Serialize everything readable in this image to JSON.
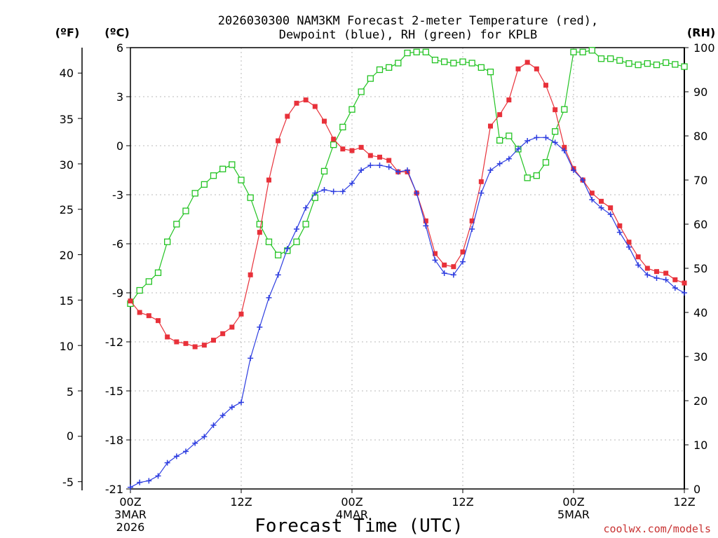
{
  "chart_data": {
    "type": "line",
    "title": [
      "2026030300 NAM3KM Forecast 2-meter Temperature (red),",
      "Dewpoint (blue), RH (green) for KPLB"
    ],
    "xlabel": "Forecast Time (UTC)",
    "credit": "coolwx.com/models",
    "colors": {
      "temperature": "#e8313a",
      "dewpoint": "#2d3de0",
      "rh": "#22c322",
      "credit": "#c83232"
    },
    "x": [
      0,
      1,
      2,
      3,
      4,
      5,
      6,
      7,
      8,
      9,
      10,
      11,
      12,
      13,
      14,
      15,
      16,
      17,
      18,
      19,
      20,
      21,
      22,
      23,
      24,
      25,
      26,
      27,
      28,
      29,
      30,
      31,
      32,
      33,
      34,
      35,
      36,
      37,
      38,
      39,
      40,
      41,
      42,
      43,
      44,
      45,
      46,
      47,
      48,
      49,
      50,
      51,
      52,
      53,
      54,
      55,
      56,
      57,
      58,
      59,
      60
    ],
    "xlim": [
      0,
      60
    ],
    "x_ticks": [
      {
        "hour": 0,
        "lines": [
          "00Z",
          "3MAR",
          "2026"
        ]
      },
      {
        "hour": 12,
        "lines": [
          "12Z"
        ]
      },
      {
        "hour": 24,
        "lines": [
          "00Z",
          "4MAR"
        ]
      },
      {
        "hour": 36,
        "lines": [
          "12Z"
        ]
      },
      {
        "hour": 48,
        "lines": [
          "00Z",
          "5MAR"
        ]
      },
      {
        "hour": 60,
        "lines": [
          "12Z"
        ]
      }
    ],
    "axes": {
      "fahrenheit": {
        "label": "(ºF)",
        "ticks": [
          "40",
          "35",
          "30",
          "25",
          "20",
          "15",
          "10",
          "5",
          "0",
          "-5"
        ],
        "range": [
          -5.8,
          42.8
        ]
      },
      "celsius": {
        "label": "(ºC)",
        "ticks": [
          "6",
          "3",
          "0",
          "-3",
          "-6",
          "-9",
          "-12",
          "-15",
          "-18",
          "-21"
        ],
        "range": [
          -21,
          6
        ]
      },
      "rh": {
        "label": "(RH)",
        "ticks": [
          "100",
          "90",
          "80",
          "70",
          "60",
          "50",
          "40",
          "30",
          "20",
          "10",
          "0"
        ],
        "range": [
          0,
          100
        ]
      }
    },
    "series": [
      {
        "name": "Temperature",
        "units": "°C",
        "color": "#e8313a",
        "marker": "filled-square",
        "values": [
          -9.5,
          -10.2,
          -10.4,
          -10.7,
          -11.7,
          -12,
          -12.1,
          -12.3,
          -12.2,
          -11.9,
          -11.5,
          -11.1,
          -10.3,
          -7.9,
          -5.3,
          -2.1,
          0.3,
          1.8,
          2.6,
          2.8,
          2.4,
          1.5,
          0.4,
          -0.2,
          -0.3,
          -0.1,
          -0.6,
          -0.7,
          -0.9,
          -1.6,
          -1.6,
          -2.9,
          -4.6,
          -6.6,
          -7.3,
          -7.4,
          -6.5,
          -4.6,
          -2.2,
          1.2,
          1.9,
          2.8,
          4.7,
          5.1,
          4.7,
          3.7,
          2.2,
          -0.1,
          -1.4,
          -2.1,
          -2.9,
          -3.4,
          -3.8,
          -4.9,
          -5.9,
          -6.8,
          -7.5,
          -7.7,
          -7.8,
          -8.2,
          -8.4
        ]
      },
      {
        "name": "Dewpoint",
        "units": "°C",
        "color": "#2d3de0",
        "marker": "plus",
        "values": [
          -20.9,
          -20.6,
          -20.5,
          -20.2,
          -19.4,
          -19.0,
          -18.7,
          -18.2,
          -17.8,
          -17.1,
          -16.5,
          -16.0,
          -15.7,
          -13.0,
          -11.1,
          -9.3,
          -7.9,
          -6.3,
          -5.1,
          -3.8,
          -2.9,
          -2.7,
          -2.8,
          -2.8,
          -2.3,
          -1.5,
          -1.2,
          -1.2,
          -1.3,
          -1.6,
          -1.5,
          -2.9,
          -4.9,
          -7.0,
          -7.8,
          -7.9,
          -7.1,
          -5.1,
          -2.9,
          -1.5,
          -1.1,
          -0.8,
          -0.2,
          0.3,
          0.5,
          0.5,
          0.2,
          -0.3,
          -1.5,
          -2.1,
          -3.3,
          -3.8,
          -4.2,
          -5.3,
          -6.2,
          -7.3,
          -7.9,
          -8.1,
          -8.2,
          -8.7,
          -9.0
        ]
      },
      {
        "name": "RH",
        "units": "%",
        "color": "#22c322",
        "marker": "open-square",
        "values": [
          42,
          45,
          47,
          49,
          56,
          60,
          63,
          67,
          69,
          71,
          72.5,
          73.5,
          70,
          66,
          60,
          56,
          53,
          54,
          56,
          60,
          66,
          72,
          78,
          82,
          86,
          90,
          93,
          95,
          95.5,
          96.5,
          98.8,
          99,
          99,
          97.2,
          96.8,
          96.5,
          96.8,
          96.5,
          95.5,
          94.5,
          79,
          80,
          77,
          70.5,
          71,
          74,
          81,
          86,
          99,
          99,
          99.4,
          97.5,
          97.5,
          97.1,
          96.4,
          96.1,
          96.4,
          96.1,
          96.6,
          96.2,
          95.7
        ]
      }
    ]
  }
}
